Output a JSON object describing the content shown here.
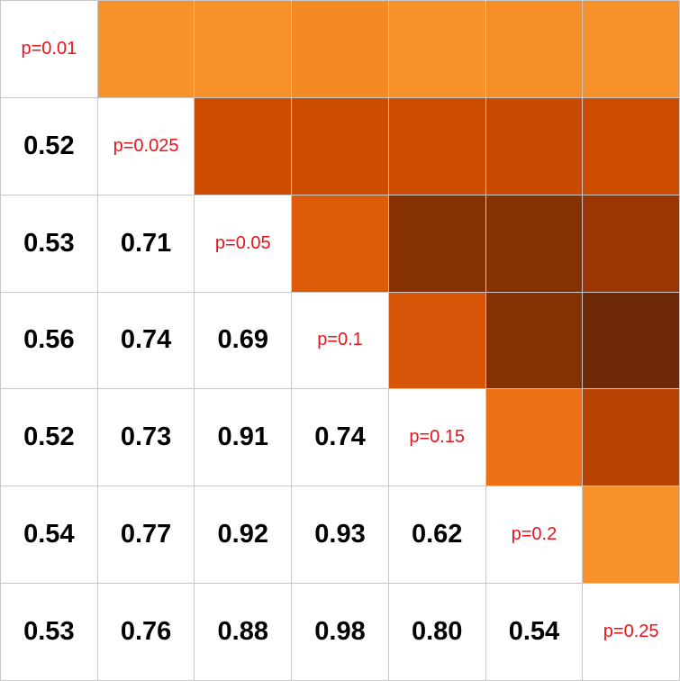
{
  "chart_data": {
    "type": "heatmap",
    "labels": [
      "p=0.01",
      "p=0.025",
      "p=0.05",
      "p=0.1",
      "p=0.15",
      "p=0.2",
      "p=0.25"
    ],
    "lower_values": [
      [
        null,
        null,
        null,
        null,
        null,
        null,
        null
      ],
      [
        "0.52",
        null,
        null,
        null,
        null,
        null,
        null
      ],
      [
        "0.53",
        "0.71",
        null,
        null,
        null,
        null,
        null
      ],
      [
        "0.56",
        "0.74",
        "0.69",
        null,
        null,
        null,
        null
      ],
      [
        "0.52",
        "0.73",
        "0.91",
        "0.74",
        null,
        null,
        null
      ],
      [
        "0.54",
        "0.77",
        "0.92",
        "0.93",
        "0.62",
        null,
        null
      ],
      [
        "0.53",
        "0.76",
        "0.88",
        "0.98",
        "0.80",
        "0.54",
        null
      ]
    ],
    "upper_colors": [
      [
        null,
        "#f7922a",
        "#f7922a",
        "#f48a24",
        "#f7922a",
        "#f68e27",
        "#f7922a"
      ],
      [
        null,
        null,
        "#cc4c02",
        "#cc4c02",
        "#cc4c02",
        "#c94a02",
        "#cc4c02"
      ],
      [
        null,
        null,
        null,
        "#dc5c0a",
        "#863104",
        "#863104",
        "#9a3604"
      ],
      [
        null,
        null,
        null,
        null,
        "#d65508",
        "#863104",
        "#6e2a06"
      ],
      [
        null,
        null,
        null,
        null,
        null,
        "#ec7014",
        "#b84203"
      ],
      [
        null,
        null,
        null,
        null,
        null,
        null,
        "#f7922a"
      ],
      [
        null,
        null,
        null,
        null,
        null,
        null,
        null
      ]
    ]
  }
}
